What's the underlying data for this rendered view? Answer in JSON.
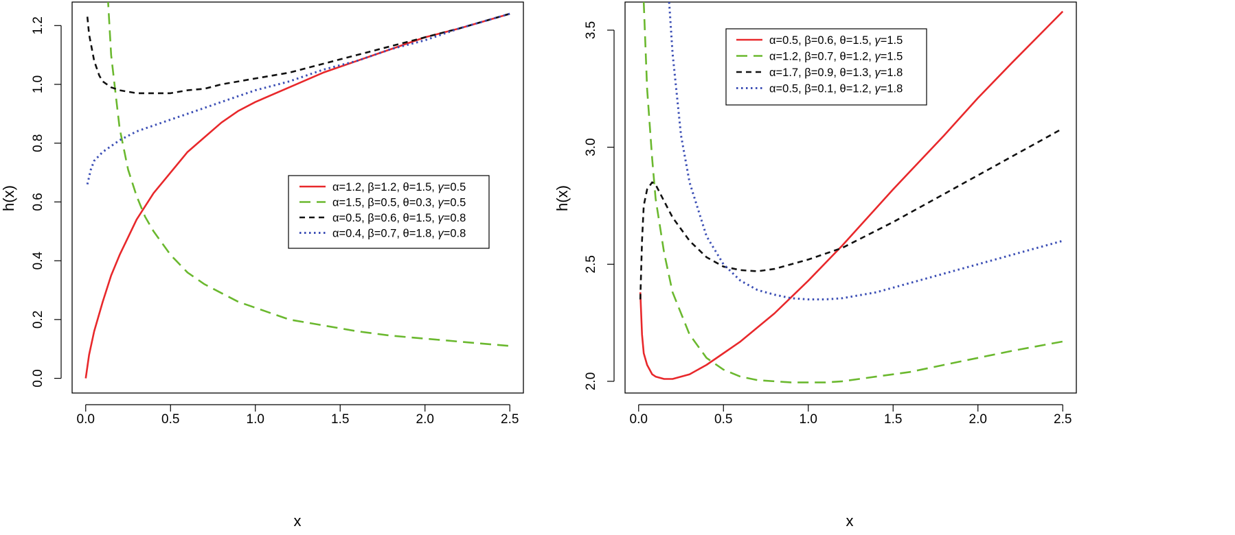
{
  "figure": {
    "charts": [
      {
        "id": "left",
        "title": "",
        "xlabel": "x",
        "ylabel": "h(x)",
        "legend_position": "center-right",
        "legend_box": true
      },
      {
        "id": "right",
        "title": "",
        "xlabel": "x",
        "ylabel": "h(x)",
        "legend_position": "top-center",
        "legend_box": true
      }
    ]
  },
  "chart_data": [
    {
      "type": "line",
      "title": "",
      "xlabel": "x",
      "ylabel": "h(x)",
      "xlim": [
        -0.08,
        2.58
      ],
      "ylim": [
        -0.05,
        1.28
      ],
      "xticks": [
        "0.0",
        "0.5",
        "1.0",
        "1.5",
        "2.0",
        "2.5"
      ],
      "xtick_values": [
        0,
        0.5,
        1.0,
        1.5,
        2.0,
        2.5
      ],
      "yticks": [
        "0.0",
        "0.2",
        "0.4",
        "0.6",
        "0.8",
        "1.0",
        "1.2"
      ],
      "ytick_values": [
        0,
        0.2,
        0.4,
        0.6,
        0.8,
        1.0,
        1.2
      ],
      "grid": false,
      "legend": "center-right",
      "series": [
        {
          "name": "α=1.2, β=1.2, θ=1.5, γ=0.5",
          "color": "#e8282b",
          "dash": "solid",
          "x": [
            0.0,
            0.02,
            0.05,
            0.1,
            0.15,
            0.2,
            0.25,
            0.3,
            0.4,
            0.5,
            0.6,
            0.7,
            0.8,
            0.9,
            1.0,
            1.2,
            1.4,
            1.6,
            1.8,
            2.0,
            2.2,
            2.5
          ],
          "y": [
            0.0,
            0.08,
            0.16,
            0.26,
            0.35,
            0.42,
            0.48,
            0.54,
            0.63,
            0.7,
            0.77,
            0.82,
            0.87,
            0.91,
            0.94,
            0.99,
            1.04,
            1.08,
            1.12,
            1.16,
            1.19,
            1.24
          ]
        },
        {
          "name": "α=1.5, β=0.5, θ=0.3, γ=0.5",
          "color": "#6ab82e",
          "dash": "longdash",
          "x": [
            0.13,
            0.15,
            0.18,
            0.2,
            0.25,
            0.3,
            0.35,
            0.4,
            0.5,
            0.6,
            0.7,
            0.8,
            0.9,
            1.0,
            1.2,
            1.4,
            1.6,
            1.8,
            2.0,
            2.2,
            2.5
          ],
          "y": [
            1.3,
            1.1,
            0.95,
            0.85,
            0.71,
            0.62,
            0.55,
            0.5,
            0.42,
            0.36,
            0.32,
            0.29,
            0.26,
            0.24,
            0.2,
            0.18,
            0.16,
            0.145,
            0.135,
            0.125,
            0.11
          ]
        },
        {
          "name": "α=0.5, β=0.6, θ=1.5, γ=0.8",
          "color": "#111111",
          "dash": "dashed",
          "x": [
            0.01,
            0.02,
            0.05,
            0.08,
            0.1,
            0.15,
            0.2,
            0.3,
            0.4,
            0.5,
            0.6,
            0.7,
            0.8,
            1.0,
            1.2,
            1.4,
            1.6,
            1.8,
            2.0,
            2.2,
            2.5
          ],
          "y": [
            1.23,
            1.17,
            1.08,
            1.03,
            1.01,
            0.99,
            0.98,
            0.97,
            0.97,
            0.97,
            0.98,
            0.985,
            1.0,
            1.02,
            1.04,
            1.07,
            1.1,
            1.13,
            1.16,
            1.19,
            1.24
          ]
        },
        {
          "name": "α=0.4, β=0.7, θ=1.8, γ=0.8",
          "color": "#3c4fb5",
          "dash": "dotted",
          "x": [
            0.01,
            0.03,
            0.05,
            0.1,
            0.15,
            0.2,
            0.3,
            0.4,
            0.5,
            0.6,
            0.7,
            0.8,
            0.9,
            1.0,
            1.2,
            1.4,
            1.6,
            1.8,
            2.0,
            2.2,
            2.5
          ],
          "y": [
            0.66,
            0.71,
            0.74,
            0.77,
            0.79,
            0.81,
            0.84,
            0.86,
            0.88,
            0.9,
            0.92,
            0.94,
            0.96,
            0.98,
            1.01,
            1.05,
            1.08,
            1.12,
            1.15,
            1.19,
            1.24
          ]
        }
      ]
    },
    {
      "type": "line",
      "title": "",
      "xlabel": "x",
      "ylabel": "h(x)",
      "xlim": [
        -0.08,
        2.58
      ],
      "ylim": [
        1.95,
        3.62
      ],
      "xticks": [
        "0.0",
        "0.5",
        "1.0",
        "1.5",
        "2.0",
        "2.5"
      ],
      "xtick_values": [
        0,
        0.5,
        1.0,
        1.5,
        2.0,
        2.5
      ],
      "yticks": [
        "2.0",
        "2.5",
        "3.0",
        "3.5"
      ],
      "ytick_values": [
        2.0,
        2.5,
        3.0,
        3.5
      ],
      "grid": false,
      "legend": "top-center",
      "series": [
        {
          "name": "α=0.5, β=0.6, θ=1.5, γ=1.5",
          "color": "#e8282b",
          "dash": "solid",
          "x": [
            0.01,
            0.02,
            0.03,
            0.05,
            0.08,
            0.1,
            0.15,
            0.2,
            0.3,
            0.4,
            0.5,
            0.6,
            0.8,
            1.0,
            1.2,
            1.5,
            1.8,
            2.0,
            2.2,
            2.5
          ],
          "y": [
            2.38,
            2.2,
            2.12,
            2.07,
            2.03,
            2.02,
            2.01,
            2.01,
            2.03,
            2.07,
            2.12,
            2.17,
            2.29,
            2.43,
            2.58,
            2.82,
            3.05,
            3.21,
            3.36,
            3.58
          ]
        },
        {
          "name": "α=1.2, β=0.7, θ=1.2, γ=1.5",
          "color": "#6ab82e",
          "dash": "longdash",
          "x": [
            0.03,
            0.05,
            0.08,
            0.1,
            0.15,
            0.2,
            0.3,
            0.4,
            0.5,
            0.6,
            0.7,
            0.8,
            0.9,
            1.0,
            1.1,
            1.2,
            1.4,
            1.6,
            1.8,
            2.0,
            2.2,
            2.5
          ],
          "y": [
            3.62,
            3.25,
            2.95,
            2.78,
            2.55,
            2.38,
            2.2,
            2.1,
            2.05,
            2.02,
            2.005,
            2.0,
            1.995,
            1.995,
            1.995,
            2.0,
            2.02,
            2.04,
            2.07,
            2.1,
            2.13,
            2.17
          ]
        },
        {
          "name": "α=1.7, β=0.9, θ=1.3, γ=1.8",
          "color": "#111111",
          "dash": "dashed",
          "x": [
            0.01,
            0.02,
            0.03,
            0.05,
            0.08,
            0.1,
            0.15,
            0.2,
            0.3,
            0.4,
            0.5,
            0.6,
            0.7,
            0.8,
            1.0,
            1.2,
            1.5,
            1.8,
            2.0,
            2.2,
            2.5
          ],
          "y": [
            2.35,
            2.6,
            2.75,
            2.82,
            2.85,
            2.84,
            2.77,
            2.7,
            2.6,
            2.53,
            2.49,
            2.475,
            2.47,
            2.48,
            2.52,
            2.57,
            2.68,
            2.8,
            2.88,
            2.96,
            3.08
          ]
        },
        {
          "name": "α=0.5, β=0.1, θ=1.2, γ=1.8",
          "color": "#3c4fb5",
          "dash": "dotted",
          "x": [
            0.18,
            0.2,
            0.25,
            0.3,
            0.4,
            0.5,
            0.6,
            0.7,
            0.8,
            0.9,
            1.0,
            1.1,
            1.2,
            1.4,
            1.6,
            1.8,
            2.0,
            2.2,
            2.5
          ],
          "y": [
            3.62,
            3.4,
            3.05,
            2.85,
            2.62,
            2.5,
            2.43,
            2.39,
            2.37,
            2.355,
            2.35,
            2.35,
            2.355,
            2.38,
            2.42,
            2.46,
            2.5,
            2.54,
            2.6
          ]
        }
      ]
    }
  ]
}
